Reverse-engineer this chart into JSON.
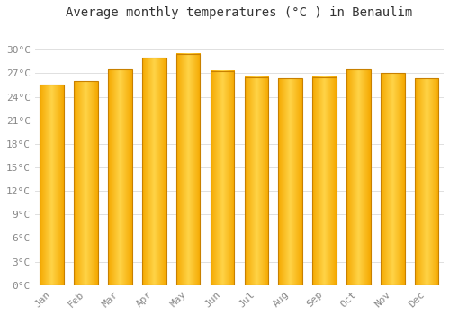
{
  "title": "Average monthly temperatures (°C ) in Benaulim",
  "months": [
    "Jan",
    "Feb",
    "Mar",
    "Apr",
    "May",
    "Jun",
    "Jul",
    "Aug",
    "Sep",
    "Oct",
    "Nov",
    "Dec"
  ],
  "temperatures": [
    25.5,
    26.0,
    27.5,
    29.0,
    29.5,
    27.3,
    26.5,
    26.3,
    26.5,
    27.5,
    27.0,
    26.3
  ],
  "bar_color_center": "#FFD44A",
  "bar_color_edge": "#F5A800",
  "bar_border_color": "#C88000",
  "background_color": "#FFFFFF",
  "grid_color": "#E0E0E0",
  "text_color": "#888888",
  "title_color": "#333333",
  "ylim": [
    0,
    33
  ],
  "yticks": [
    0,
    3,
    6,
    9,
    12,
    15,
    18,
    21,
    24,
    27,
    30
  ],
  "ytick_labels": [
    "0°C",
    "3°C",
    "6°C",
    "9°C",
    "12°C",
    "15°C",
    "18°C",
    "21°C",
    "24°C",
    "27°C",
    "30°C"
  ],
  "title_fontsize": 10,
  "tick_fontsize": 8
}
